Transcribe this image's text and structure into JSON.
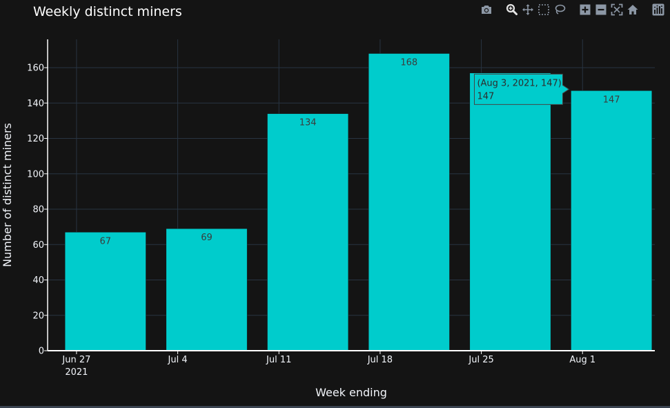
{
  "chart_data": {
    "type": "bar",
    "title": "Weekly distinct miners",
    "xlabel": "Week ending",
    "ylabel": "Number of distinct miners",
    "categories": [
      "2021-06-29",
      "2021-07-06",
      "2021-07-13",
      "2021-07-20",
      "2021-07-27",
      "2021-08-03"
    ],
    "values": [
      67,
      69,
      134,
      168,
      157,
      147
    ],
    "data_labels": [
      "67",
      "69",
      "134",
      "168",
      "",
      "147"
    ],
    "x_ticks": [
      {
        "label": "Jun 27",
        "sublabel": "2021",
        "date": "2021-06-27"
      },
      {
        "label": "Jul 4",
        "sublabel": "",
        "date": "2021-07-04"
      },
      {
        "label": "Jul 11",
        "sublabel": "",
        "date": "2021-07-11"
      },
      {
        "label": "Jul 18",
        "sublabel": "",
        "date": "2021-07-18"
      },
      {
        "label": "Jul 25",
        "sublabel": "",
        "date": "2021-07-25"
      },
      {
        "label": "Aug 1",
        "sublabel": "",
        "date": "2021-08-01"
      }
    ],
    "y_ticks": [
      0,
      20,
      40,
      60,
      80,
      100,
      120,
      140,
      160
    ],
    "ylim": [
      0,
      176
    ],
    "xlim": [
      "2021-06-25",
      "2021-08-06"
    ],
    "grid": true,
    "bar_color": "#00cccc",
    "tooltip": {
      "category_index": 5,
      "line1": "(Aug 3, 2021, 147)",
      "line2": "147"
    }
  },
  "modebar": {
    "icons": [
      "camera-icon",
      "zoom-icon",
      "pan-icon",
      "box-select-icon",
      "lasso-icon",
      "zoom-in-icon",
      "zoom-out-icon",
      "autoscale-icon",
      "reset-axes-icon",
      "plotly-logo-icon"
    ]
  },
  "colors": {
    "background": "#141414",
    "grid": "#283442",
    "text": "#f2f5fa",
    "bar": "#00cccc",
    "modebar_icon": "#8c97a5"
  }
}
